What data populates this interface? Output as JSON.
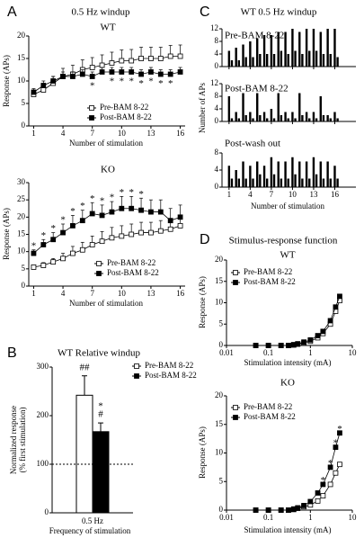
{
  "chart_data": [
    {
      "type": "line",
      "panel": "A",
      "title": "0.5 Hz windup",
      "subtitle": "WT",
      "xlabel": "Number of stimulation",
      "ylabel": "Response (APs)",
      "x": [
        1,
        2,
        3,
        4,
        5,
        6,
        7,
        8,
        9,
        10,
        11,
        12,
        13,
        14,
        15,
        16
      ],
      "xlim": [
        0.5,
        16.5
      ],
      "xticks": [
        1,
        4,
        7,
        10,
        13,
        16
      ],
      "ylim": [
        0,
        20
      ],
      "yticks": [
        0,
        5,
        10,
        15,
        20
      ],
      "series": [
        {
          "name": "Pre-BAM 8-22",
          "color": "#000000",
          "fill": "#ffffff",
          "values": [
            7,
            8,
            9.5,
            11,
            11.5,
            12.5,
            13,
            13.5,
            14,
            14.5,
            14.5,
            15,
            15,
            15,
            15.5,
            15.5
          ],
          "errors": [
            1,
            1.2,
            1.5,
            1.8,
            2,
            2.2,
            2.2,
            2.3,
            2.4,
            2.4,
            2.5,
            2.5,
            2.5,
            2.5,
            2.4,
            2.5
          ]
        },
        {
          "name": "Post-BAM 8-22",
          "color": "#000000",
          "fill": "#000000",
          "values": [
            7.5,
            9,
            10,
            11,
            11,
            11.5,
            11,
            12,
            12,
            12,
            12,
            11.5,
            12,
            11.5,
            11.5,
            12
          ],
          "errors": [
            0.8,
            1,
            1,
            1,
            1,
            1,
            1,
            1,
            1,
            1,
            1,
            1,
            1,
            1,
            1,
            1
          ]
        }
      ],
      "annotations": {
        "text": "*",
        "series": 1,
        "placement": "below",
        "x": [
          7,
          9,
          10,
          11,
          12,
          13,
          14,
          15
        ]
      }
    },
    {
      "type": "line",
      "subtitle": "KO",
      "xlabel": "Number of stimulation",
      "ylabel": "Response (APs)",
      "x": [
        1,
        2,
        3,
        4,
        5,
        6,
        7,
        8,
        9,
        10,
        11,
        12,
        13,
        14,
        15,
        16
      ],
      "xlim": [
        0.5,
        16.5
      ],
      "xticks": [
        1,
        4,
        7,
        10,
        13,
        16
      ],
      "ylim": [
        0,
        30
      ],
      "yticks": [
        0,
        5,
        10,
        15,
        20,
        25,
        30
      ],
      "series": [
        {
          "name": "Pre-BAM 8-22",
          "color": "#000000",
          "fill": "#ffffff",
          "values": [
            5.5,
            6,
            7,
            8,
            9.5,
            10.5,
            12,
            13,
            14,
            14.5,
            15,
            15.5,
            15.5,
            16,
            16.5,
            17.5
          ],
          "errors": [
            0.5,
            0.8,
            1,
            1.5,
            2,
            2.2,
            2.5,
            2.8,
            3,
            3,
            3,
            3,
            3,
            3,
            3,
            3
          ]
        },
        {
          "name": "Post-BAM 8-22",
          "color": "#000000",
          "fill": "#000000",
          "values": [
            9.5,
            12,
            13.5,
            15.5,
            17.5,
            19,
            21,
            20.5,
            21.5,
            22.5,
            22.5,
            22,
            21.5,
            21.5,
            19,
            20
          ],
          "errors": [
            1,
            1.5,
            2,
            2.5,
            3,
            3,
            3.2,
            3,
            3,
            3.5,
            3.5,
            3.5,
            3.5,
            3.5,
            3.5,
            3.5
          ]
        }
      ],
      "annotations": {
        "text": "*",
        "series": 1,
        "placement": "above",
        "x": [
          1,
          2,
          3,
          4,
          5,
          6,
          7,
          8,
          9,
          10,
          11,
          12
        ]
      }
    },
    {
      "type": "bar",
      "panel": "B",
      "title": "WT  Relative windup",
      "xlabel": "Frequency of stimulation",
      "ylabel": [
        "Normalized response",
        "(% first stimulation)"
      ],
      "categories": [
        "0.5 Hz"
      ],
      "ylim": [
        0,
        300
      ],
      "yticks": [
        0,
        100,
        200,
        300
      ],
      "refline": 100,
      "series": [
        {
          "name": "Pre-BAM 8-22",
          "color": "#000000",
          "fill": "#ffffff",
          "values": [
            242
          ],
          "errors": [
            40
          ]
        },
        {
          "name": "Post-BAM 8-22",
          "color": "#000000",
          "fill": "#000000",
          "values": [
            167
          ],
          "errors": [
            18
          ]
        }
      ],
      "annotations": [
        {
          "series": 0,
          "text": "##"
        },
        {
          "series": 1,
          "text": "#"
        },
        {
          "series": 1,
          "text": "*"
        }
      ]
    },
    {
      "type": "spikes",
      "panel": "C",
      "title": "WT 0.5 Hz windup",
      "xlabel": "Number of stimulation",
      "ylabel": "Number of APs",
      "x": [
        1,
        1.4,
        2,
        2.4,
        3,
        3.4,
        4,
        4.4,
        5,
        5.4,
        6,
        6.4,
        7,
        7.4,
        8,
        8.4,
        9,
        9.4,
        10,
        10.4,
        11,
        11.4,
        12,
        12.4,
        13,
        13.4,
        14,
        14.4,
        15,
        15.4,
        16,
        16.4
      ],
      "xlim": [
        0,
        19
      ],
      "xticks": [
        1,
        4,
        7,
        10,
        13,
        16
      ],
      "subplots": [
        {
          "name": "Pre-BAM 8-22",
          "color": "#000000",
          "ylim": [
            0,
            12
          ],
          "yticks": [
            0,
            4,
            8,
            12
          ],
          "values": [
            5,
            2,
            6,
            2,
            7,
            3,
            8,
            3,
            9,
            4,
            10,
            4,
            10,
            4,
            11,
            5,
            11,
            4,
            12,
            5,
            11,
            4,
            12,
            5,
            12,
            5,
            11,
            4,
            12,
            4,
            12,
            3
          ]
        },
        {
          "name": "Post-BAM 8-22",
          "color": "#000000",
          "ylim": [
            0,
            12
          ],
          "yticks": [
            0,
            4,
            8,
            12
          ],
          "values": [
            8,
            1,
            3,
            1,
            9,
            2,
            3,
            1,
            9,
            2,
            3,
            1,
            4,
            1,
            9,
            2,
            3,
            1,
            3,
            1,
            9,
            2,
            3,
            1,
            3,
            1,
            8,
            2,
            2,
            1,
            3,
            1
          ]
        },
        {
          "name": "Post-wash out",
          "color": "#000000",
          "ylim": [
            0,
            8
          ],
          "yticks": [
            0,
            4,
            8
          ],
          "values": [
            5,
            2,
            4,
            2,
            6,
            2,
            5,
            2,
            6,
            3,
            5,
            2,
            7,
            3,
            6,
            2,
            6,
            2,
            7,
            3,
            6,
            2,
            6,
            2,
            7,
            3,
            6,
            2,
            6,
            2,
            5,
            2
          ]
        }
      ]
    },
    {
      "type": "line",
      "panel": "D",
      "title": "Stimulus-response function",
      "subtitle": "WT",
      "xlabel": "Stimulation intensity (mA)",
      "ylabel": "Response (APs)",
      "xlog": true,
      "x": [
        0.05,
        0.1,
        0.2,
        0.3,
        0.4,
        0.5,
        0.7,
        1,
        1.5,
        2,
        3,
        4,
        5
      ],
      "xlim": [
        0.01,
        10
      ],
      "xticks": [
        0.01,
        0.1,
        1,
        10
      ],
      "ylim": [
        0,
        20
      ],
      "yticks": [
        0,
        5,
        10,
        15,
        20
      ],
      "series": [
        {
          "name": "Pre-BAM 8-22",
          "color": "#000000",
          "fill": "#ffffff",
          "values": [
            0,
            0,
            0,
            0,
            0.1,
            0.3,
            0.6,
            1,
            1.8,
            2.8,
            5,
            8,
            10.5
          ]
        },
        {
          "name": "Post-BAM 8-22",
          "color": "#000000",
          "fill": "#000000",
          "values": [
            0,
            0,
            0,
            0,
            0.2,
            0.4,
            0.8,
            1.3,
            2.3,
            3.3,
            5.8,
            9,
            11.5
          ]
        }
      ]
    },
    {
      "type": "line",
      "subtitle": "KO",
      "xlabel": "Stimulation intensity (mA)",
      "ylabel": "Response (APs)",
      "xlog": true,
      "x": [
        0.05,
        0.1,
        0.2,
        0.3,
        0.4,
        0.5,
        0.7,
        1,
        1.5,
        2,
        3,
        4,
        5
      ],
      "xlim": [
        0.01,
        10
      ],
      "xticks": [
        0.01,
        0.1,
        1,
        10
      ],
      "ylim": [
        0,
        20
      ],
      "yticks": [
        0,
        5,
        10,
        15,
        20
      ],
      "series": [
        {
          "name": "Pre-BAM 8-22",
          "color": "#000000",
          "fill": "#ffffff",
          "values": [
            0,
            0,
            0,
            0,
            0.1,
            0.3,
            0.6,
            0.9,
            1.6,
            2.5,
            4.5,
            6.5,
            8
          ]
        },
        {
          "name": "Post-BAM 8-22",
          "color": "#000000",
          "fill": "#000000",
          "values": [
            0,
            0,
            0,
            0,
            0.2,
            0.4,
            0.8,
            1.5,
            3,
            4.5,
            7.5,
            11,
            13.5
          ]
        }
      ],
      "annotations": {
        "text": "*",
        "series": 1,
        "placement": "above",
        "x": [
          2,
          3,
          4,
          5
        ]
      }
    }
  ]
}
